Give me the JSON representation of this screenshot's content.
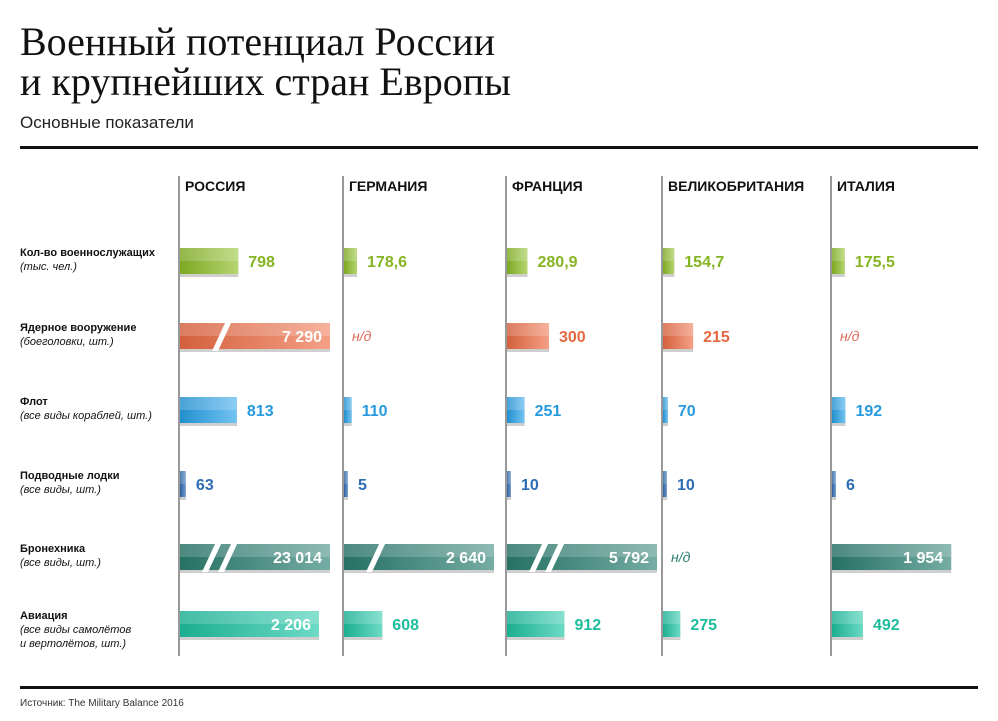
{
  "title_lines": [
    "Военный потенциал России",
    "и крупнейших стран Европы"
  ],
  "subtitle": "Основные показатели",
  "source": "Источник: The Military Balance 2016",
  "colors": {
    "personnel": "#8dbf25",
    "nuclear": "#f06d45",
    "fleet": "#27a2ea",
    "submarines": "#2e6cb3",
    "armor": "#2b7f72",
    "aviation": "#1fc6a5",
    "axis": "#333333",
    "na_text_nuclear": "#e06a5a",
    "na_text_armor": "#2b7f72"
  },
  "chart_data": {
    "type": "bar",
    "countries": [
      "РОССИЯ",
      "ГЕРМАНИЯ",
      "ФРАНЦИЯ",
      "ВЕЛИКОБРИТАНИЯ",
      "ИТАЛИЯ"
    ],
    "indicators": [
      {
        "key": "personnel",
        "label": "Кол-во военнослужащих",
        "unit": "(тыс. чел.)",
        "values": [
          798,
          178.6,
          280.9,
          154.7,
          175.5
        ],
        "labels": [
          "798",
          "178,6",
          "280,9",
          "154,7",
          "175,5"
        ],
        "broken": [
          false,
          false,
          false,
          false,
          false
        ]
      },
      {
        "key": "nuclear",
        "label": "Ядерное вооружение",
        "unit": "(боеголовки, шт.)",
        "values": [
          7290,
          null,
          300,
          215,
          null
        ],
        "labels": [
          "7 290",
          "н/д",
          "300",
          "215",
          "н/д"
        ],
        "broken": [
          true,
          false,
          false,
          false,
          false
        ]
      },
      {
        "key": "fleet",
        "label": "Флот",
        "unit": "(все виды кораблей, шт.)",
        "values": [
          813,
          110,
          251,
          70,
          192
        ],
        "labels": [
          "813",
          "110",
          "251",
          "70",
          "192"
        ],
        "broken": [
          false,
          false,
          false,
          false,
          false
        ]
      },
      {
        "key": "submarines",
        "label": "Подводные лодки",
        "unit": "(все виды, шт.)",
        "values": [
          63,
          5,
          10,
          10,
          6
        ],
        "labels": [
          "63",
          "5",
          "10",
          "10",
          "6"
        ],
        "broken": [
          false,
          false,
          false,
          false,
          false
        ]
      },
      {
        "key": "armor",
        "label": "Бронехника",
        "unit": "(все виды, шт.)",
        "values": [
          23014,
          2640,
          5792,
          null,
          1954
        ],
        "labels": [
          "23 014",
          "2 640",
          "5 792",
          "н/д",
          "1 954"
        ],
        "broken": [
          true,
          true,
          true,
          false,
          false
        ]
      },
      {
        "key": "aviation",
        "label": "Авиация",
        "unit": [
          "(все виды самолётов",
          "и вертолётов, шт.)"
        ],
        "values": [
          2206,
          608,
          912,
          275,
          492
        ],
        "labels": [
          "2 206",
          "608",
          "912",
          "275",
          "492"
        ],
        "broken": [
          false,
          false,
          false,
          false,
          false
        ]
      }
    ]
  }
}
